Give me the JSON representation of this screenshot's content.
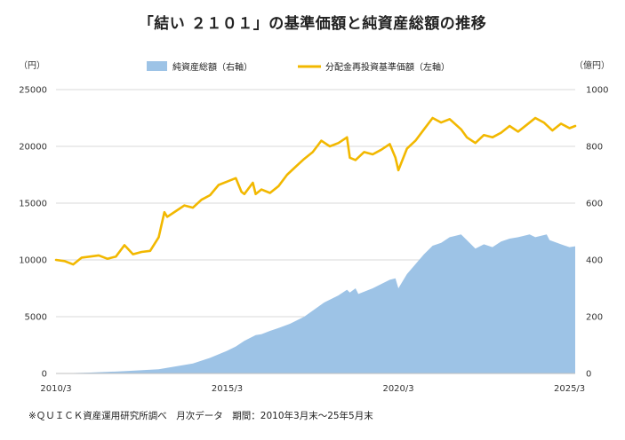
{
  "title": "「結い ２１０１」の基準価額と純資産総額の推移",
  "source_note": "※ＱＵＩＣＫ資産運用研究所調べ　月次データ　期間：2010年3月末～25年5月末",
  "chart_data": {
    "type": "line+area",
    "left_axis": {
      "unit_label": "（円）",
      "ticks": [
        "0",
        "5000",
        "10000",
        "15000",
        "20000",
        "25000"
      ],
      "range": [
        0,
        25000
      ]
    },
    "right_axis": {
      "unit_label": "（億円）",
      "ticks": [
        "0",
        "200",
        "400",
        "600",
        "800",
        "1000"
      ],
      "range": [
        0,
        1000
      ]
    },
    "x_axis": {
      "ticks": [
        "2010/3",
        "2015/3",
        "2020/3",
        "2025/3"
      ],
      "range": [
        "2010-03",
        "2025-05"
      ]
    },
    "grid": "horizontal",
    "legend_position": "top",
    "series": [
      {
        "name": "純資産総額（右軸）",
        "axis": "right",
        "type": "area",
        "color": "#9dc3e6",
        "points": [
          [
            "2010-03",
            0
          ],
          [
            "2011-03",
            3
          ],
          [
            "2012-03",
            8
          ],
          [
            "2013-03",
            15
          ],
          [
            "2013-06",
            20
          ],
          [
            "2014-03",
            35
          ],
          [
            "2014-09",
            55
          ],
          [
            "2015-03",
            80
          ],
          [
            "2015-06",
            95
          ],
          [
            "2015-09",
            115
          ],
          [
            "2016-01",
            135
          ],
          [
            "2016-03",
            138
          ],
          [
            "2016-06",
            150
          ],
          [
            "2016-09",
            160
          ],
          [
            "2017-01",
            175
          ],
          [
            "2017-06",
            200
          ],
          [
            "2018-01",
            250
          ],
          [
            "2018-06",
            275
          ],
          [
            "2018-09",
            295
          ],
          [
            "2018-10",
            285
          ],
          [
            "2018-12",
            300
          ],
          [
            "2019-01",
            280
          ],
          [
            "2019-06",
            300
          ],
          [
            "2019-12",
            330
          ],
          [
            "2020-02",
            335
          ],
          [
            "2020-03",
            300
          ],
          [
            "2020-06",
            350
          ],
          [
            "2020-12",
            420
          ],
          [
            "2021-03",
            450
          ],
          [
            "2021-06",
            460
          ],
          [
            "2021-09",
            480
          ],
          [
            "2022-01",
            490
          ],
          [
            "2022-03",
            470
          ],
          [
            "2022-06",
            440
          ],
          [
            "2022-09",
            455
          ],
          [
            "2022-12",
            445
          ],
          [
            "2023-03",
            465
          ],
          [
            "2023-06",
            475
          ],
          [
            "2023-09",
            480
          ],
          [
            "2024-01",
            490
          ],
          [
            "2024-03",
            480
          ],
          [
            "2024-07",
            490
          ],
          [
            "2024-08",
            470
          ],
          [
            "2024-12",
            455
          ],
          [
            "2025-03",
            445
          ],
          [
            "2025-05",
            448
          ]
        ]
      },
      {
        "name": "分配金再投資基準価額（左軸）",
        "axis": "left",
        "type": "line",
        "color": "#f2b800",
        "points": [
          [
            "2010-03",
            10000
          ],
          [
            "2010-06",
            9900
          ],
          [
            "2010-09",
            9600
          ],
          [
            "2010-12",
            10200
          ],
          [
            "2011-03",
            10300
          ],
          [
            "2011-06",
            10400
          ],
          [
            "2011-09",
            10100
          ],
          [
            "2011-12",
            10300
          ],
          [
            "2012-03",
            11300
          ],
          [
            "2012-06",
            10500
          ],
          [
            "2012-09",
            10700
          ],
          [
            "2012-12",
            10800
          ],
          [
            "2013-03",
            12000
          ],
          [
            "2013-05",
            14200
          ],
          [
            "2013-06",
            13800
          ],
          [
            "2013-09",
            14300
          ],
          [
            "2013-12",
            14800
          ],
          [
            "2014-03",
            14600
          ],
          [
            "2014-06",
            15300
          ],
          [
            "2014-09",
            15700
          ],
          [
            "2014-12",
            16600
          ],
          [
            "2015-03",
            16900
          ],
          [
            "2015-06",
            17200
          ],
          [
            "2015-08",
            16000
          ],
          [
            "2015-09",
            15800
          ],
          [
            "2015-12",
            16800
          ],
          [
            "2016-01",
            15800
          ],
          [
            "2016-03",
            16200
          ],
          [
            "2016-06",
            15900
          ],
          [
            "2016-09",
            16500
          ],
          [
            "2016-12",
            17500
          ],
          [
            "2017-03",
            18200
          ],
          [
            "2017-06",
            18900
          ],
          [
            "2017-09",
            19500
          ],
          [
            "2017-12",
            20500
          ],
          [
            "2018-03",
            20000
          ],
          [
            "2018-06",
            20300
          ],
          [
            "2018-09",
            20800
          ],
          [
            "2018-10",
            19000
          ],
          [
            "2018-12",
            18800
          ],
          [
            "2019-03",
            19500
          ],
          [
            "2019-06",
            19300
          ],
          [
            "2019-09",
            19700
          ],
          [
            "2019-12",
            20200
          ],
          [
            "2020-02",
            19000
          ],
          [
            "2020-03",
            17900
          ],
          [
            "2020-06",
            19800
          ],
          [
            "2020-09",
            20500
          ],
          [
            "2020-12",
            21500
          ],
          [
            "2021-03",
            22500
          ],
          [
            "2021-06",
            22100
          ],
          [
            "2021-09",
            22400
          ],
          [
            "2022-01",
            21500
          ],
          [
            "2022-03",
            20800
          ],
          [
            "2022-06",
            20300
          ],
          [
            "2022-09",
            21000
          ],
          [
            "2022-12",
            20800
          ],
          [
            "2023-03",
            21200
          ],
          [
            "2023-06",
            21800
          ],
          [
            "2023-09",
            21300
          ],
          [
            "2023-12",
            21900
          ],
          [
            "2024-03",
            22500
          ],
          [
            "2024-06",
            22100
          ],
          [
            "2024-09",
            21400
          ],
          [
            "2024-12",
            22000
          ],
          [
            "2025-03",
            21600
          ],
          [
            "2025-05",
            21800
          ]
        ]
      }
    ]
  }
}
